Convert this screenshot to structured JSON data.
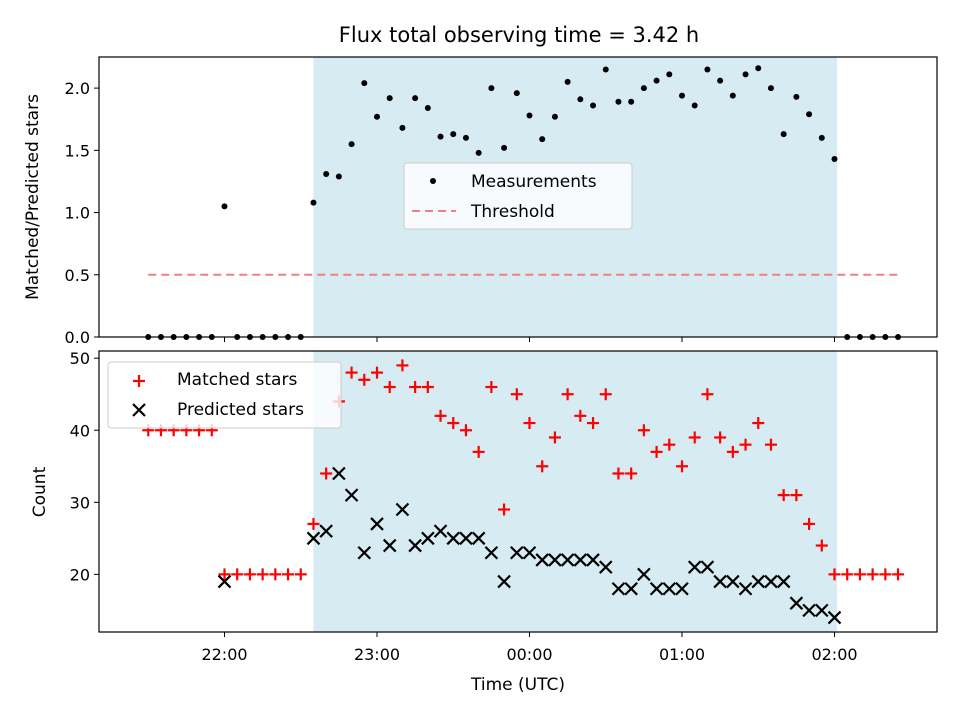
{
  "chart_data": [
    {
      "type": "scatter",
      "title": "Flux total observing time = 3.42 h",
      "ylabel": "Matched/Predicted stars",
      "ylim": [
        0,
        2.25
      ],
      "yticks": [
        "0.0",
        "0.5",
        "1.0",
        "1.5",
        "2.0"
      ],
      "shaded_interval": [
        "22:35",
        "02:01"
      ],
      "legend_position": "center",
      "series": [
        {
          "name": "Measurements",
          "marker": "dot",
          "color": "#000000",
          "points": [
            [
              "21:30",
              0
            ],
            [
              "21:35",
              0
            ],
            [
              "21:40",
              0
            ],
            [
              "21:45",
              0
            ],
            [
              "21:50",
              0
            ],
            [
              "21:55",
              0
            ],
            [
              "22:00",
              1.05
            ],
            [
              "22:05",
              0
            ],
            [
              "22:10",
              0
            ],
            [
              "22:15",
              0
            ],
            [
              "22:20",
              0
            ],
            [
              "22:25",
              0
            ],
            [
              "22:30",
              0
            ],
            [
              "22:35",
              1.08
            ],
            [
              "22:40",
              1.31
            ],
            [
              "22:45",
              1.29
            ],
            [
              "22:50",
              1.55
            ],
            [
              "22:55",
              2.04
            ],
            [
              "23:00",
              1.77
            ],
            [
              "23:05",
              1.92
            ],
            [
              "23:10",
              1.68
            ],
            [
              "23:15",
              1.92
            ],
            [
              "23:20",
              1.84
            ],
            [
              "23:25",
              1.61
            ],
            [
              "23:30",
              1.63
            ],
            [
              "23:35",
              1.6
            ],
            [
              "23:40",
              1.48
            ],
            [
              "23:45",
              2.0
            ],
            [
              "23:50",
              1.52
            ],
            [
              "23:55",
              1.96
            ],
            [
              "00:00",
              1.78
            ],
            [
              "00:05",
              1.59
            ],
            [
              "00:10",
              1.77
            ],
            [
              "00:15",
              2.05
            ],
            [
              "00:20",
              1.91
            ],
            [
              "00:25",
              1.86
            ],
            [
              "00:30",
              2.15
            ],
            [
              "00:35",
              1.89
            ],
            [
              "00:40",
              1.89
            ],
            [
              "00:45",
              2.0
            ],
            [
              "00:50",
              2.06
            ],
            [
              "00:55",
              2.11
            ],
            [
              "01:00",
              1.94
            ],
            [
              "01:05",
              1.86
            ],
            [
              "01:10",
              2.15
            ],
            [
              "01:15",
              2.06
            ],
            [
              "01:20",
              1.94
            ],
            [
              "01:25",
              2.11
            ],
            [
              "01:30",
              2.16
            ],
            [
              "01:35",
              2.0
            ],
            [
              "01:40",
              1.63
            ],
            [
              "01:45",
              1.93
            ],
            [
              "01:50",
              1.79
            ],
            [
              "01:55",
              1.6
            ],
            [
              "02:00",
              1.43
            ],
            [
              "02:05",
              0
            ],
            [
              "02:10",
              0
            ],
            [
              "02:15",
              0
            ],
            [
              "02:20",
              0
            ],
            [
              "02:25",
              0
            ]
          ]
        },
        {
          "name": "Threshold",
          "line_style": "dashed",
          "color": "#f08080",
          "points": [
            [
              "21:30",
              0.5
            ],
            [
              "02:25",
              0.5
            ]
          ]
        }
      ]
    },
    {
      "type": "scatter",
      "xlabel": "Time (UTC)",
      "ylabel": "Count",
      "ylim": [
        12,
        51
      ],
      "yticks": [
        "20",
        "30",
        "40",
        "50"
      ],
      "xticks": [
        "22:00",
        "23:00",
        "00:00",
        "01:00",
        "02:00"
      ],
      "shaded_interval": [
        "22:35",
        "02:01"
      ],
      "legend_position": "upper left",
      "series": [
        {
          "name": "Matched stars",
          "marker": "plus",
          "color": "#ff0000",
          "points": [
            [
              "21:30",
              40
            ],
            [
              "21:35",
              40
            ],
            [
              "21:40",
              40
            ],
            [
              "21:45",
              40
            ],
            [
              "21:50",
              40
            ],
            [
              "21:55",
              40
            ],
            [
              "22:00",
              20
            ],
            [
              "22:05",
              20
            ],
            [
              "22:10",
              20
            ],
            [
              "22:15",
              20
            ],
            [
              "22:20",
              20
            ],
            [
              "22:25",
              20
            ],
            [
              "22:30",
              20
            ],
            [
              "22:35",
              27
            ],
            [
              "22:40",
              34
            ],
            [
              "22:45",
              44
            ],
            [
              "22:50",
              48
            ],
            [
              "22:55",
              47
            ],
            [
              "23:00",
              48
            ],
            [
              "23:05",
              46
            ],
            [
              "23:10",
              49
            ],
            [
              "23:15",
              46
            ],
            [
              "23:20",
              46
            ],
            [
              "23:25",
              42
            ],
            [
              "23:30",
              41
            ],
            [
              "23:35",
              40
            ],
            [
              "23:40",
              37
            ],
            [
              "23:45",
              46
            ],
            [
              "23:50",
              29
            ],
            [
              "23:55",
              45
            ],
            [
              "00:00",
              41
            ],
            [
              "00:05",
              35
            ],
            [
              "00:10",
              39
            ],
            [
              "00:15",
              45
            ],
            [
              "00:20",
              42
            ],
            [
              "00:25",
              41
            ],
            [
              "00:30",
              45
            ],
            [
              "00:35",
              34
            ],
            [
              "00:40",
              34
            ],
            [
              "00:45",
              40
            ],
            [
              "00:50",
              37
            ],
            [
              "00:55",
              38
            ],
            [
              "01:00",
              35
            ],
            [
              "01:05",
              39
            ],
            [
              "01:10",
              45
            ],
            [
              "01:15",
              39
            ],
            [
              "01:20",
              37
            ],
            [
              "01:25",
              38
            ],
            [
              "01:30",
              41
            ],
            [
              "01:35",
              38
            ],
            [
              "01:40",
              31
            ],
            [
              "01:45",
              31
            ],
            [
              "01:50",
              27
            ],
            [
              "01:55",
              24
            ],
            [
              "02:00",
              20
            ],
            [
              "02:05",
              20
            ],
            [
              "02:10",
              20
            ],
            [
              "02:15",
              20
            ],
            [
              "02:20",
              20
            ],
            [
              "02:25",
              20
            ]
          ]
        },
        {
          "name": "Predicted stars",
          "marker": "x",
          "color": "#000000",
          "points": [
            [
              "22:00",
              19
            ],
            [
              "22:35",
              25
            ],
            [
              "22:40",
              26
            ],
            [
              "22:45",
              34
            ],
            [
              "22:50",
              31
            ],
            [
              "22:55",
              23
            ],
            [
              "23:00",
              27
            ],
            [
              "23:05",
              24
            ],
            [
              "23:10",
              29
            ],
            [
              "23:15",
              24
            ],
            [
              "23:20",
              25
            ],
            [
              "23:25",
              26
            ],
            [
              "23:30",
              25
            ],
            [
              "23:35",
              25
            ],
            [
              "23:40",
              25
            ],
            [
              "23:45",
              23
            ],
            [
              "23:50",
              19
            ],
            [
              "23:55",
              23
            ],
            [
              "00:00",
              23
            ],
            [
              "00:05",
              22
            ],
            [
              "00:10",
              22
            ],
            [
              "00:15",
              22
            ],
            [
              "00:20",
              22
            ],
            [
              "00:25",
              22
            ],
            [
              "00:30",
              21
            ],
            [
              "00:35",
              18
            ],
            [
              "00:40",
              18
            ],
            [
              "00:45",
              20
            ],
            [
              "00:50",
              18
            ],
            [
              "00:55",
              18
            ],
            [
              "01:00",
              18
            ],
            [
              "01:05",
              21
            ],
            [
              "01:10",
              21
            ],
            [
              "01:15",
              19
            ],
            [
              "01:20",
              19
            ],
            [
              "01:25",
              18
            ],
            [
              "01:30",
              19
            ],
            [
              "01:35",
              19
            ],
            [
              "01:40",
              19
            ],
            [
              "01:45",
              16
            ],
            [
              "01:50",
              15
            ],
            [
              "01:55",
              15
            ],
            [
              "02:00",
              14
            ]
          ]
        }
      ]
    }
  ]
}
